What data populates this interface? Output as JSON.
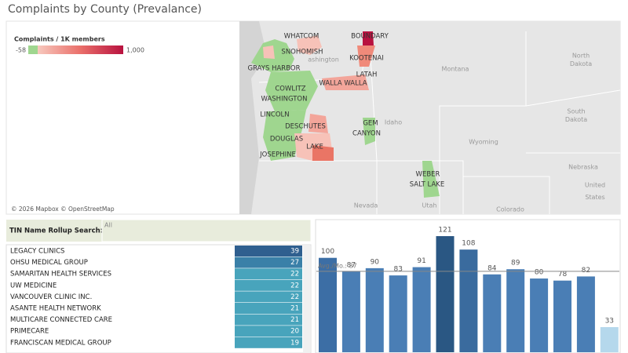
{
  "title": "Complaints by County (Prevalance)",
  "map": {
    "legend": {
      "title": "Complaints / 1K members",
      "ticks": [
        -58,
        {
          "value": 1000,
          "label": "1,000"
        }
      ]
    },
    "county_labels": [
      "WHATCOM",
      "BOUNDARY",
      "SNOHOMISH",
      "KOOTENAI",
      "GRAYS HARBOR",
      "LATAH",
      "WALLA WALLA",
      "COWLITZ",
      "WASHINGTON",
      "LINCOLN",
      "DESCHUTES",
      "GEM",
      "CANYON",
      "DOUGLAS",
      "LAKE",
      "JOSEPHINE",
      "WEBER",
      "SALT LAKE"
    ],
    "basemap_labels": [
      [
        "ashington"
      ],
      [
        "Montana"
      ],
      [
        "North",
        "Dakota"
      ],
      [
        "Idaho"
      ],
      [
        "Wyoming"
      ],
      [
        "South",
        "Dakota"
      ],
      [
        "Nebraska"
      ],
      [
        "Nevada"
      ],
      [
        "Utah"
      ],
      [
        "Colorado"
      ],
      [
        "United",
        "States"
      ]
    ],
    "attribution": "© 2026 Mapbox © OpenStreetMap"
  },
  "search": {
    "label": "TIN Name Rollup Search:",
    "value": "All"
  },
  "table": {
    "rows": [
      [
        "LEGACY CLINICS",
        "39"
      ],
      [
        "OHSU MEDICAL GROUP",
        "27"
      ],
      [
        "SAMARITAN HEALTH SERVICES",
        "22"
      ],
      [
        "UW MEDICINE",
        "22"
      ],
      [
        "VANCOUVER CLINIC INC.",
        "22"
      ],
      [
        "ASANTE HEALTH NETWORK",
        "21"
      ],
      [
        "MULTICARE CONNECTED CARE",
        "21"
      ],
      [
        "PRIMECARE",
        "20"
      ],
      [
        "FRANCISCAN MEDICAL GROUP",
        "19"
      ]
    ],
    "colors": [
      "#2f5f8f",
      "#3a80a8",
      "#48a4bc",
      "#48a4bc",
      "#48a4bc",
      "#48a4bc",
      "#48a4bc",
      "#48a4bc",
      "#48a4bc"
    ]
  },
  "chart_data": {
    "type": "bar",
    "values": [
      100,
      87,
      90,
      83,
      91,
      121,
      108,
      84,
      89,
      80,
      78,
      82,
      33
    ],
    "colors": [
      "#3c6ea5",
      "#4a7eb5",
      "#4a7eb5",
      "#4a7eb5",
      "#4a7eb5",
      "#2a5783",
      "#3a6b9e",
      "#4a7eb5",
      "#4a7eb5",
      "#4a7eb5",
      "#4a7eb5",
      "#4a7eb5",
      "#b5d8ec"
    ],
    "reference_line": {
      "label": "Avg./Mo.: 87",
      "value": 87
    }
  }
}
